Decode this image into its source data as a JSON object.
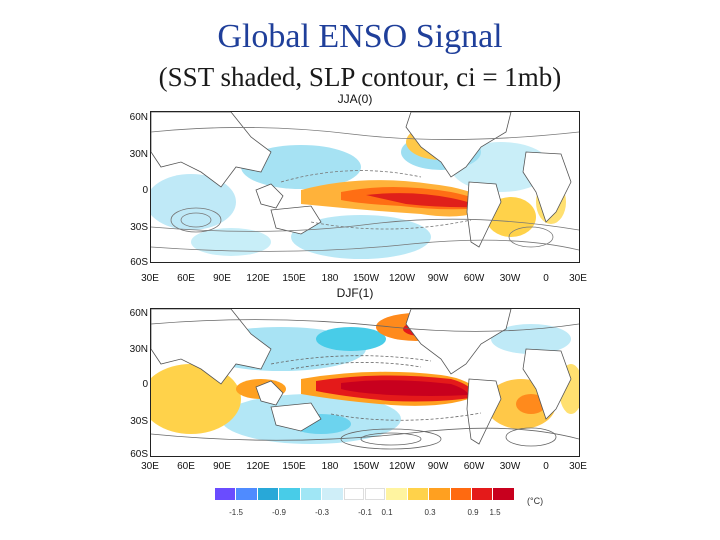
{
  "title": "Global ENSO Signal",
  "subtitle": "(SST shaded, SLP contour, ci = 1mb)",
  "panels": [
    {
      "label": "JJA(0)",
      "y_ticks": [
        "60N",
        "30N",
        "0",
        "30S",
        "60S"
      ],
      "x_ticks": [
        "30E",
        "60E",
        "90E",
        "120E",
        "150E",
        "180",
        "150W",
        "120W",
        "90W",
        "60W",
        "30W",
        "0",
        "30E"
      ]
    },
    {
      "label": "DJF(1)",
      "y_ticks": [
        "60N",
        "30N",
        "0",
        "30S",
        "60S"
      ],
      "x_ticks": [
        "30E",
        "60E",
        "90E",
        "120E",
        "150E",
        "180",
        "150W",
        "120W",
        "90W",
        "60W",
        "30W",
        "0",
        "30E"
      ]
    }
  ],
  "colorbar": {
    "colors": [
      "#6a4cff",
      "#4f8bff",
      "#28a8d8",
      "#48cce8",
      "#a0e6f5",
      "#cfeef8",
      "#ffffff",
      "#ffffff",
      "#fff4a0",
      "#ffd24a",
      "#ffa020",
      "#ff6a10",
      "#e41a1a",
      "#c8001e"
    ],
    "labels": [
      "-1.5",
      "-0.9",
      "-0.3",
      "-0.1",
      "0.1",
      "0.3",
      "0.9",
      "1.5"
    ],
    "unit": "(°C)"
  }
}
